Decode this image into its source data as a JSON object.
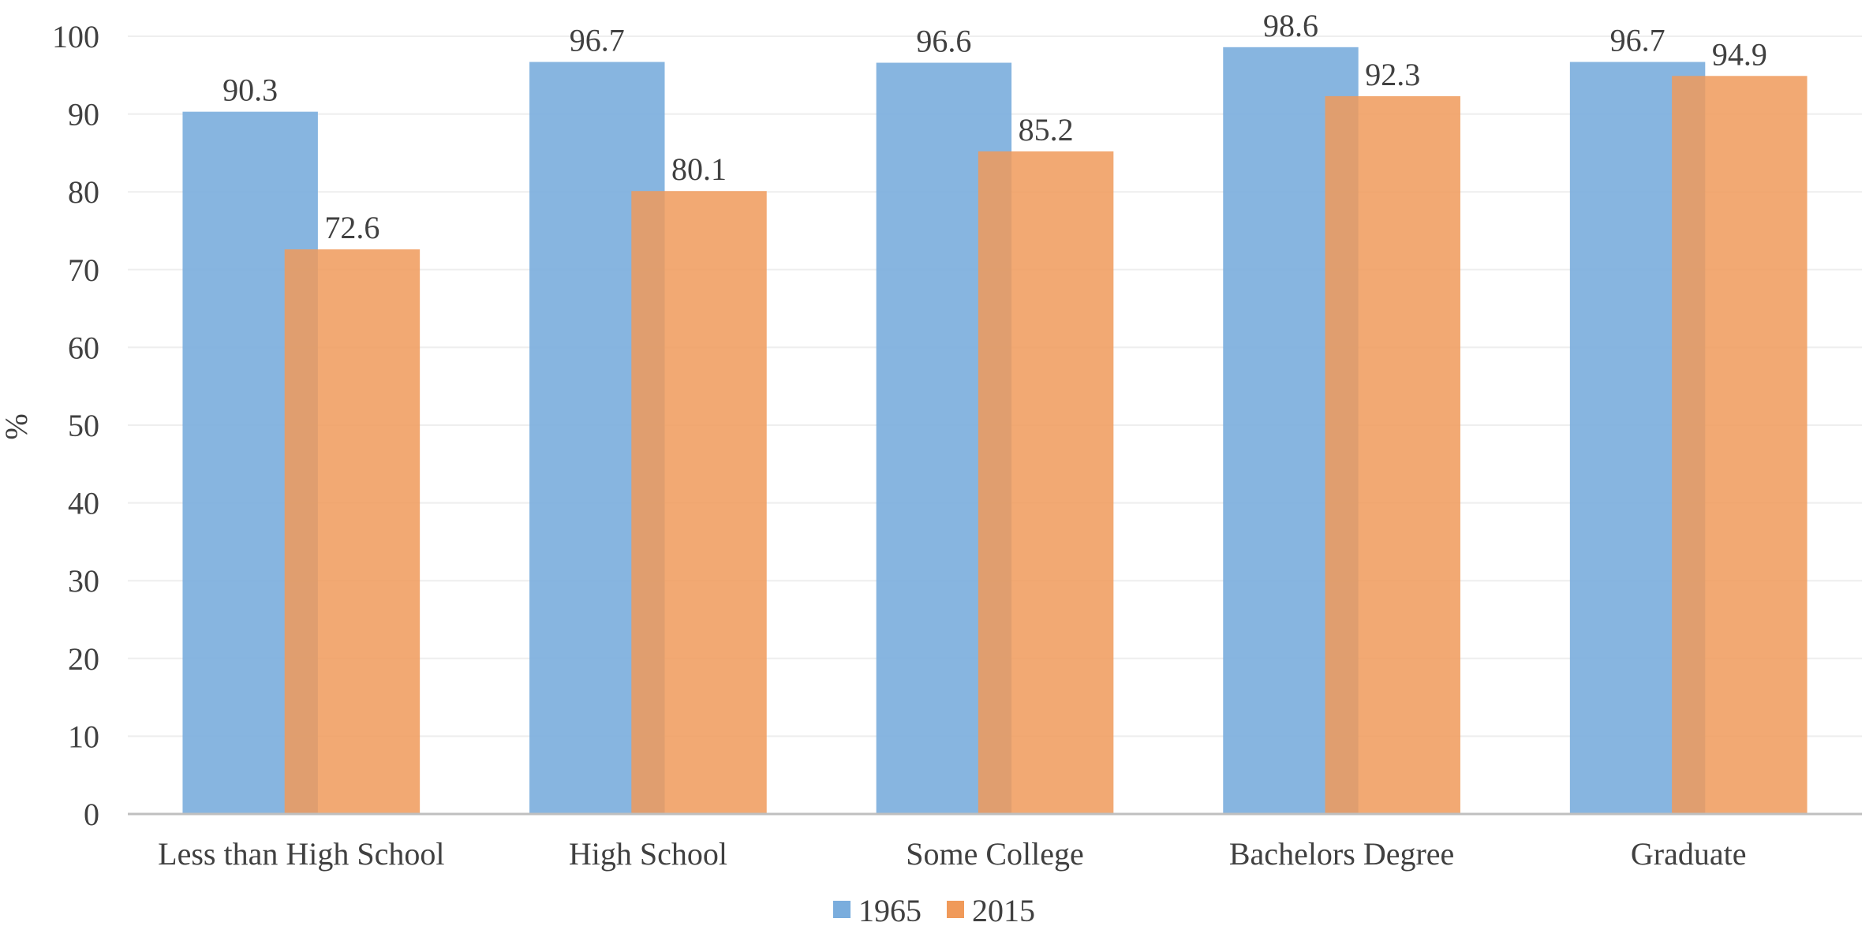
{
  "chart_data": {
    "type": "bar",
    "title": "",
    "xlabel": "",
    "ylabel": "%",
    "ylim": [
      0,
      100
    ],
    "yticks": [
      0,
      10,
      20,
      30,
      40,
      50,
      60,
      70,
      80,
      90,
      100
    ],
    "grid": true,
    "legend_position": "bottom",
    "categories": [
      "Less than High School",
      "High School",
      "Some College",
      "Bachelors Degree",
      "Graduate"
    ],
    "series": [
      {
        "name": "1965",
        "color": "#7aaddd",
        "values": [
          90.3,
          96.7,
          96.6,
          98.6,
          96.7
        ]
      },
      {
        "name": "2015",
        "color": "#f09a5a",
        "values": [
          72.6,
          80.1,
          85.2,
          92.3,
          94.9
        ]
      }
    ]
  }
}
